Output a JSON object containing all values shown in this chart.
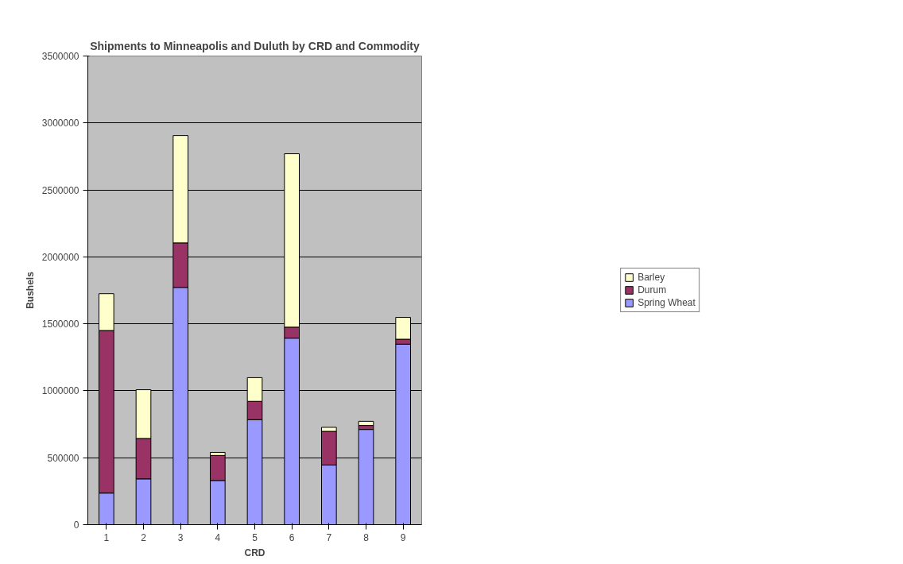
{
  "chart_data": {
    "type": "bar",
    "title": "Shipments to Minneapolis and Duluth by CRD and Commodity",
    "xlabel": "CRD",
    "ylabel": "Bushels",
    "categories": [
      "1",
      "2",
      "3",
      "4",
      "5",
      "6",
      "7",
      "8",
      "9"
    ],
    "stacked": true,
    "series": [
      {
        "name": "Spring Wheat",
        "color": "#9999ff",
        "values": [
          236000,
          342000,
          1772000,
          330000,
          784000,
          1393000,
          446000,
          711000,
          1348000
        ]
      },
      {
        "name": "Durum",
        "color": "#993366",
        "values": [
          1214000,
          302000,
          332000,
          187000,
          137000,
          82000,
          251000,
          30000,
          37000
        ]
      },
      {
        "name": "Barley",
        "color": "#ffffcc",
        "values": [
          275000,
          364000,
          802000,
          23000,
          177000,
          1295000,
          30000,
          31000,
          163000
        ]
      }
    ],
    "ylim": [
      0,
      3500000
    ],
    "yticks": [
      0,
      500000,
      1000000,
      1500000,
      2000000,
      2500000,
      3000000,
      3500000
    ],
    "grid": "y",
    "legend": "right"
  }
}
